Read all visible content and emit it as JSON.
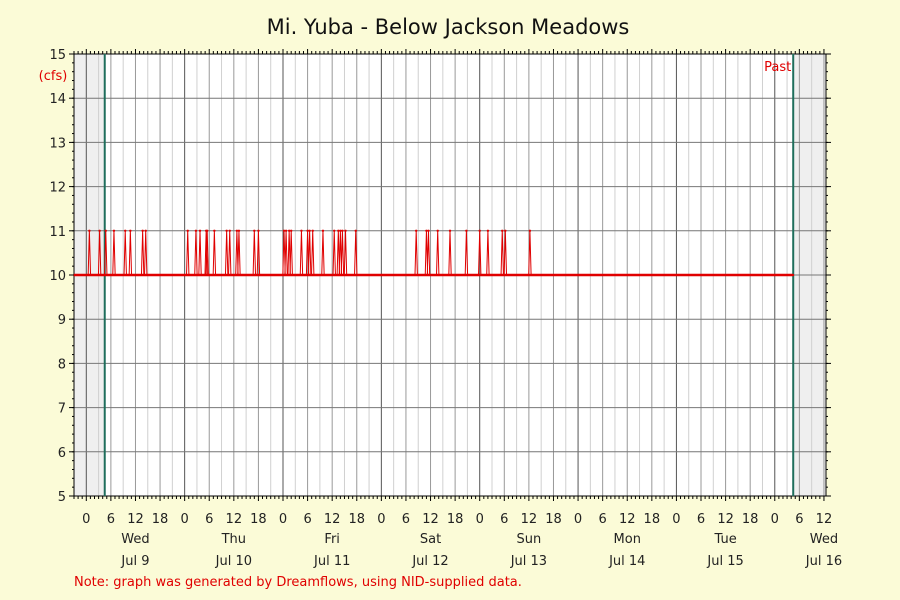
{
  "chart_data": {
    "type": "line",
    "title": "Mi. Yuba - Below Jackson Meadows",
    "ylabel": "(cfs)",
    "xlabel": "",
    "ylim": [
      5,
      15
    ],
    "y_ticks": [
      5,
      6,
      7,
      8,
      9,
      10,
      11,
      12,
      13,
      14,
      15
    ],
    "xlim": [
      "Jul 8 21:00",
      "Jul 16 12:30"
    ],
    "x_hour_ticks": [
      0,
      6,
      12,
      18,
      0,
      6,
      12,
      18,
      0,
      6,
      12,
      18,
      0,
      6,
      12,
      18,
      0,
      6,
      12,
      18,
      0,
      6,
      12,
      18,
      0,
      6,
      12,
      18,
      0,
      6,
      12
    ],
    "days": [
      {
        "weekday": "Wed",
        "date": "Jul 9"
      },
      {
        "weekday": "Thu",
        "date": "Jul 10"
      },
      {
        "weekday": "Fri",
        "date": "Jul 11"
      },
      {
        "weekday": "Sat",
        "date": "Jul 12"
      },
      {
        "weekday": "Sun",
        "date": "Jul 13"
      },
      {
        "weekday": "Mon",
        "date": "Jul 14"
      },
      {
        "weekday": "Tue",
        "date": "Jul 15"
      },
      {
        "weekday": "Wed",
        "date": "Jul 16"
      }
    ],
    "shaded_regions": [
      {
        "from": "Jul 8 21:00",
        "to": "Jul 9 04:30"
      },
      {
        "from": "Jul 16 04:30",
        "to": "Jul 16 12:30"
      }
    ],
    "marker_lines": [
      "Jul 9 04:30",
      "Jul 16 04:30"
    ],
    "past_label": "Past",
    "series": [
      {
        "color": "#e00000",
        "baseline": 10,
        "data_range": [
          "Jul 8 21:00",
          "Jul 16 04:30"
        ],
        "spike_value": 11,
        "spike_times": [
          "Jul 9 00:45",
          "Jul 9 03:15",
          "Jul 9 04:45",
          "Jul 9 06:45",
          "Jul 9 09:30",
          "Jul 9 10:45",
          "Jul 9 13:45",
          "Jul 9 14:30",
          "Jul 10 00:45",
          "Jul 10 02:45",
          "Jul 10 03:45",
          "Jul 10 05:15",
          "Jul 10 05:30",
          "Jul 10 07:15",
          "Jul 10 10:15",
          "Jul 10 11:00",
          "Jul 10 12:45",
          "Jul 10 13:15",
          "Jul 10 17:00",
          "Jul 10 18:00",
          "Jul 11 00:15",
          "Jul 11 00:45",
          "Jul 11 01:30",
          "Jul 11 02:00",
          "Jul 11 04:30",
          "Jul 11 06:00",
          "Jul 11 06:30",
          "Jul 11 07:15",
          "Jul 11 09:45",
          "Jul 11 12:30",
          "Jul 11 13:30",
          "Jul 11 14:00",
          "Jul 11 14:30",
          "Jul 11 15:15",
          "Jul 11 17:45",
          "Jul 12 08:30",
          "Jul 12 11:00",
          "Jul 12 11:30",
          "Jul 12 13:45",
          "Jul 12 16:45",
          "Jul 12 20:45",
          "Jul 13 00:00",
          "Jul 13 02:00",
          "Jul 13 05:30",
          "Jul 13 06:15",
          "Jul 13 12:15"
        ]
      }
    ]
  },
  "footer": {
    "note": "Note: graph was generated by Dreamflows, using NID-supplied data."
  }
}
